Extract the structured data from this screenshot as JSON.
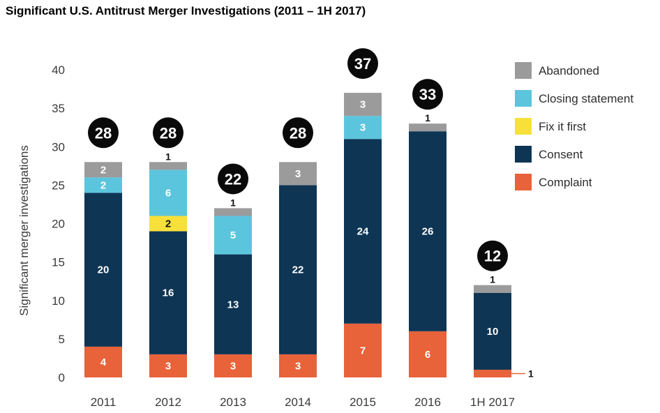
{
  "title": "Significant U.S. Antitrust Merger Investigations (2011 – 1H 2017)",
  "chart_data": {
    "type": "bar",
    "stacked": true,
    "title": "Significant U.S. Antitrust Merger Investigations (2011 – 1H 2017)",
    "xlabel": "",
    "ylabel": "Significant merger investigations",
    "ylim": [
      0,
      40
    ],
    "yticks": [
      0,
      5,
      10,
      15,
      20,
      25,
      30,
      35,
      40
    ],
    "grid": false,
    "legend_position": "right",
    "categories": [
      "2011",
      "2012",
      "2013",
      "2014",
      "2015",
      "2016",
      "1H 2017"
    ],
    "totals": [
      28,
      28,
      22,
      28,
      37,
      33,
      12
    ],
    "series": [
      {
        "name": "Complaint",
        "color": "#e8623a",
        "values": [
          4,
          3,
          3,
          3,
          7,
          6,
          1
        ]
      },
      {
        "name": "Consent",
        "color": "#0e3554",
        "values": [
          20,
          16,
          13,
          22,
          24,
          26,
          10
        ]
      },
      {
        "name": "Fix it first",
        "color": "#f7e03a",
        "values": [
          0,
          2,
          0,
          0,
          0,
          0,
          0
        ]
      },
      {
        "name": "Closing statement",
        "color": "#5cc5de",
        "values": [
          2,
          6,
          5,
          0,
          3,
          0,
          0
        ]
      },
      {
        "name": "Abandoned",
        "color": "#9b9b9b",
        "values": [
          2,
          1,
          1,
          3,
          3,
          1,
          1
        ]
      }
    ],
    "legend_order": [
      "Abandoned",
      "Closing statement",
      "Fix it first",
      "Consent",
      "Complaint"
    ]
  }
}
